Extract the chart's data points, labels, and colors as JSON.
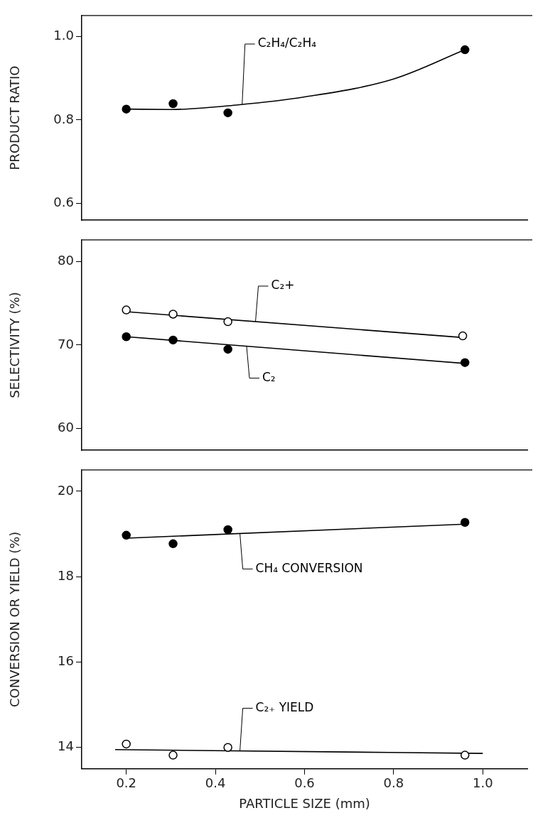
{
  "chart_data": [
    {
      "type": "scatter",
      "ylabel": "PRODUCT RATIO",
      "xlim": [
        0.1,
        1.1
      ],
      "ylim": [
        0.56,
        1.05
      ],
      "yticks": [
        {
          "value": 0.6,
          "label": "0.6"
        },
        {
          "value": 0.8,
          "label": "0.8"
        },
        {
          "value": 1.0,
          "label": "1.0"
        }
      ],
      "tick_labels": "y",
      "grid": false,
      "legend": false,
      "series": [
        {
          "type": "scatter",
          "marker": "circle",
          "color": "#000000",
          "x": [
            0.2,
            0.305,
            0.428,
            0.96
          ],
          "values": [
            0.826,
            0.839,
            0.817,
            0.968
          ]
        },
        {
          "type": "line",
          "marker": "none",
          "name": "C₂H₄/C₂H₄",
          "color": "#000000",
          "x": [
            0.2,
            0.3,
            0.45,
            0.6,
            0.8,
            0.96
          ],
          "values": [
            0.826,
            0.825,
            0.836,
            0.855,
            0.898,
            0.968
          ]
        }
      ]
    },
    {
      "type": "scatter",
      "ylabel": "SELECTIVITY (%)",
      "xlim": [
        0.1,
        1.1
      ],
      "ylim": [
        57.4,
        82.6
      ],
      "yticks": [
        60,
        70,
        80
      ],
      "tick_labels": "y",
      "grid": false,
      "legend": false,
      "series": [
        {
          "type": "scatter",
          "marker": "circle",
          "color": "#ffffff",
          "x": [
            0.2,
            0.305,
            0.428,
            0.955
          ],
          "values": [
            74.2,
            73.7,
            72.8,
            71.1
          ]
        },
        {
          "type": "line",
          "marker": "none",
          "name": "C₂+",
          "color": "#000000",
          "x": [
            0.2,
            0.955
          ],
          "values": [
            74.0,
            70.9
          ]
        },
        {
          "type": "scatter",
          "marker": "circle",
          "color": "#000000",
          "x": [
            0.2,
            0.305,
            0.428,
            0.96
          ],
          "values": [
            71.0,
            70.6,
            69.5,
            67.9
          ]
        },
        {
          "type": "line",
          "marker": "none",
          "name": "C₂",
          "color": "#000000",
          "x": [
            0.2,
            0.96
          ],
          "values": [
            71.0,
            67.8
          ]
        }
      ]
    },
    {
      "type": "scatter",
      "ylabel": "CONVERSION OR YIELD (%)",
      "xlabel": "PARTICLE SIZE (mm)",
      "xlim": [
        0.1,
        1.1
      ],
      "ylim": [
        13.5,
        20.5
      ],
      "xticks": [
        0.2,
        0.4,
        0.6,
        0.8,
        {
          "value": 1.0,
          "label": "1.0"
        }
      ],
      "yticks": [
        14,
        16,
        18,
        20
      ],
      "grid": false,
      "legend": false,
      "series": [
        {
          "type": "scatter",
          "marker": "circle",
          "color": "#000000",
          "x": [
            0.2,
            0.305,
            0.428,
            0.96
          ],
          "values": [
            18.97,
            18.77,
            19.1,
            19.27
          ]
        },
        {
          "type": "line",
          "marker": "none",
          "name": "CH₄ CONVERSION",
          "color": "#000000",
          "x": [
            0.2,
            0.96
          ],
          "values": [
            18.9,
            19.23
          ]
        },
        {
          "type": "scatter",
          "marker": "circle",
          "color": "#ffffff",
          "x": [
            0.2,
            0.305,
            0.428,
            0.96
          ],
          "values": [
            14.08,
            13.82,
            14.0,
            13.82
          ]
        },
        {
          "type": "line",
          "marker": "none",
          "name": "C₂₊ YIELD",
          "color": "#000000",
          "x": [
            0.175,
            1.0
          ],
          "values": [
            13.95,
            13.86
          ]
        }
      ]
    }
  ]
}
